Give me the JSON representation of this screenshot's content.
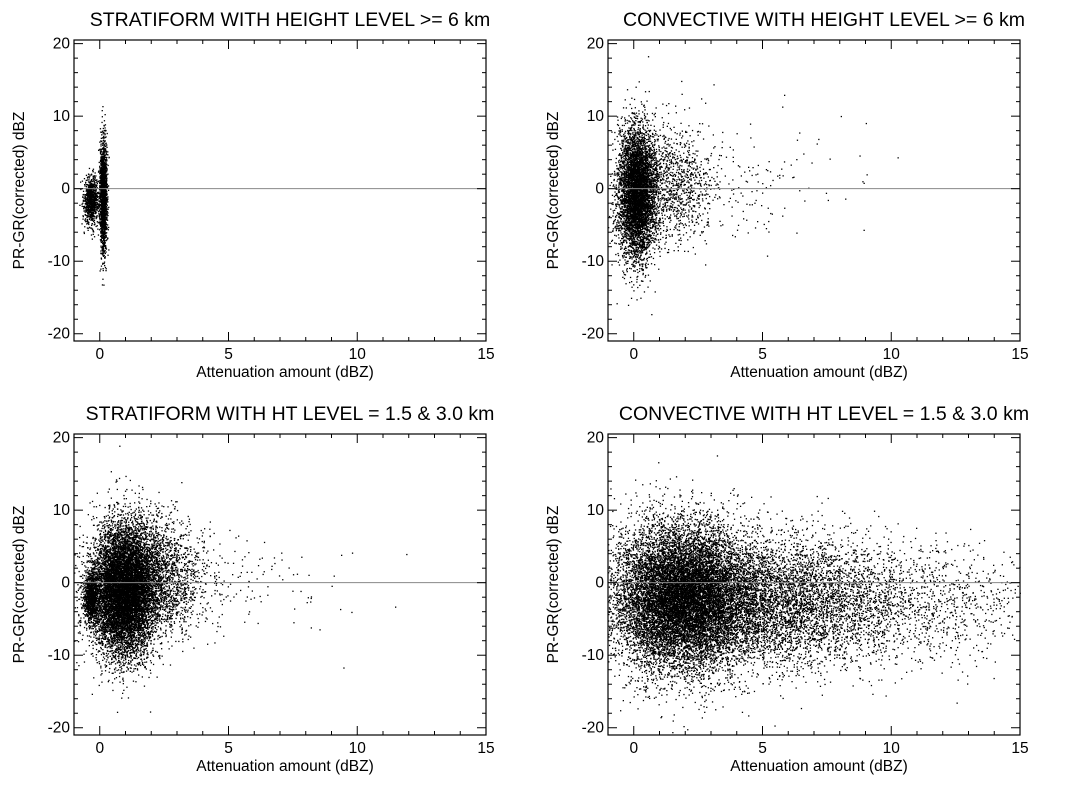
{
  "chart_data": [
    {
      "type": "scatter",
      "title": "STRATIFORM WITH HEIGHT LEVEL >= 6 km",
      "xlabel": "Attenuation amount (dBZ)",
      "ylabel": "PR-GR(corrected) dBZ",
      "xlim": [
        -1,
        15
      ],
      "ylim": [
        -21,
        20.5
      ],
      "xticks": [
        0,
        5,
        10,
        15
      ],
      "yticks": [
        -20,
        -10,
        0,
        10,
        20
      ],
      "reference_line_y": 0,
      "clusters": [
        {
          "x_center": -0.35,
          "x_spread": 0.14,
          "y_center": -1.5,
          "y_spread": 1.6,
          "count": 900
        },
        {
          "x_center": 0.12,
          "x_spread": 0.07,
          "y_center": -1.0,
          "y_spread": 3.8,
          "count": 1800
        }
      ]
    },
    {
      "type": "scatter",
      "title": "CONVECTIVE WITH HEIGHT LEVEL >= 6 km",
      "xlabel": "Attenuation amount (dBZ)",
      "ylabel": "PR-GR(corrected) dBZ",
      "xlim": [
        -1,
        15
      ],
      "ylim": [
        -21,
        20.5
      ],
      "xticks": [
        0,
        5,
        10,
        15
      ],
      "yticks": [
        -20,
        -10,
        0,
        10,
        20
      ],
      "reference_line_y": 0,
      "clusters": [
        {
          "x_center": 0.1,
          "x_spread": 0.35,
          "y_center": -0.5,
          "y_spread": 4.5,
          "count": 5000
        },
        {
          "x_center": 1.2,
          "x_spread": 1.0,
          "y_center": 0.5,
          "y_spread": 4.0,
          "count": 1400
        },
        {
          "x_center": 4.0,
          "x_spread": 2.2,
          "y_center": 0.5,
          "y_spread": 4.0,
          "count": 160
        }
      ]
    },
    {
      "type": "scatter",
      "title": "STRATIFORM WITH HT LEVEL = 1.5 & 3.0 km",
      "xlabel": "Attenuation amount (dBZ)",
      "ylabel": "PR-GR(corrected) dBZ",
      "xlim": [
        -1,
        15
      ],
      "ylim": [
        -21,
        20.5
      ],
      "xticks": [
        0,
        5,
        10,
        15
      ],
      "yticks": [
        -20,
        -10,
        0,
        10,
        20
      ],
      "reference_line_y": 0,
      "clusters": [
        {
          "x_center": -0.35,
          "x_spread": 0.15,
          "y_center": -2.0,
          "y_spread": 1.8,
          "count": 900
        },
        {
          "x_center": 0.9,
          "x_spread": 0.6,
          "y_center": -1.0,
          "y_spread": 4.5,
          "count": 9000
        },
        {
          "x_center": 2.0,
          "x_spread": 1.0,
          "y_center": 1.0,
          "y_spread": 4.0,
          "count": 2500
        },
        {
          "x_center": 4.0,
          "x_spread": 2.5,
          "y_center": 0.0,
          "y_spread": 3.5,
          "count": 260
        }
      ]
    },
    {
      "type": "scatter",
      "title": "CONVECTIVE WITH HT LEVEL = 1.5 & 3.0 km",
      "xlabel": "Attenuation amount (dBZ)",
      "ylabel": "PR-GR(corrected) dBZ",
      "xlim": [
        -1,
        15
      ],
      "ylim": [
        -21,
        20.5
      ],
      "xticks": [
        0,
        5,
        10,
        15
      ],
      "yticks": [
        -20,
        -10,
        0,
        10,
        20
      ],
      "reference_line_y": 0,
      "clusters": [
        {
          "x_center": 1.8,
          "x_spread": 1.3,
          "y_center": -2.0,
          "y_spread": 5.0,
          "count": 12000
        },
        {
          "x_center": 5.0,
          "x_spread": 2.5,
          "y_center": -2.5,
          "y_spread": 4.5,
          "count": 6000
        },
        {
          "x_center": 10.0,
          "x_spread": 3.0,
          "y_center": -3.0,
          "y_spread": 4.0,
          "count": 1500
        }
      ]
    }
  ]
}
